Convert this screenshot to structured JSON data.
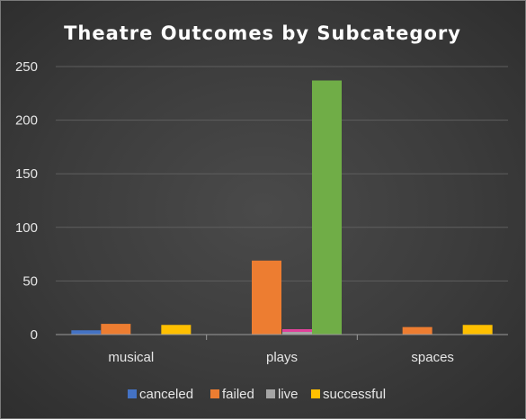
{
  "chart_data": {
    "type": "bar",
    "title": "Theatre Outcomes by Subcategory",
    "xlabel": "",
    "ylabel": "",
    "categories": [
      "musical",
      "plays",
      "spaces"
    ],
    "series": [
      {
        "name": "canceled",
        "color": "#4472c4",
        "values": [
          4,
          0,
          0
        ]
      },
      {
        "name": "failed",
        "color": "#ed7d31",
        "values": [
          10,
          69,
          7
        ]
      },
      {
        "name": "live",
        "color": "#a5a5a5",
        "values": [
          0,
          5,
          0
        ]
      },
      {
        "name": "successful",
        "color": "#ffc000",
        "values": [
          9,
          0,
          9
        ]
      }
    ],
    "annotations": [
      {
        "category": "plays",
        "series_slot": "successful",
        "value": 237,
        "color": "#70ad47"
      },
      {
        "category": "plays",
        "series_slot": "live",
        "overlay_color": "#e0409a"
      }
    ],
    "ylim": [
      0,
      250
    ],
    "yticks": [
      0,
      50,
      100,
      150,
      200,
      250
    ],
    "grid": true,
    "legend_position": "bottom"
  }
}
